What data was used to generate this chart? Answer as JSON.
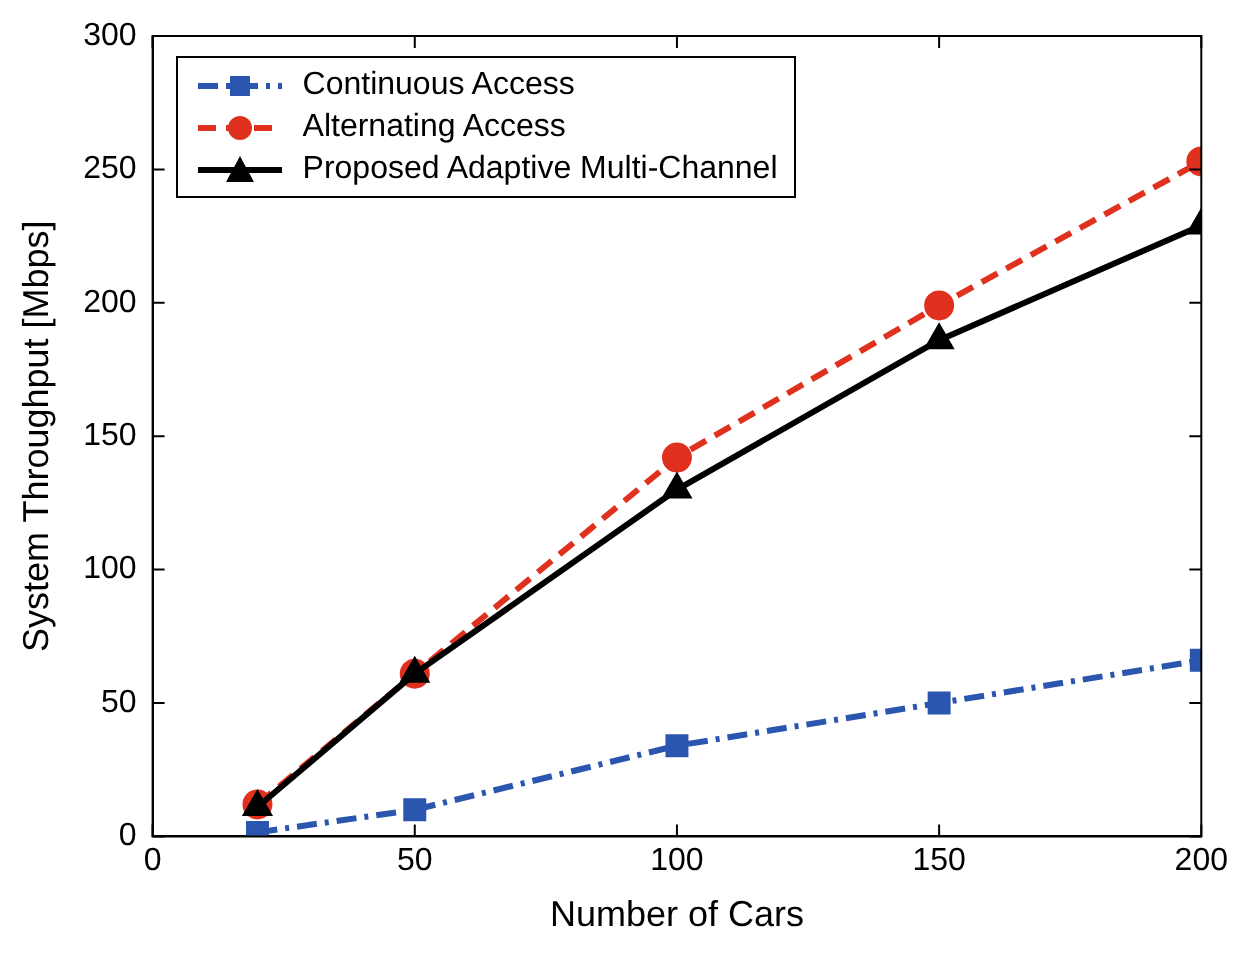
{
  "chart_data": {
    "type": "line",
    "xlabel": "Number of Cars",
    "ylabel": "System Throughput [Mbps]",
    "x": [
      20,
      50,
      100,
      150,
      200
    ],
    "series": [
      {
        "name": "Continuous Access",
        "color": "#2b56b0",
        "values": [
          1.5,
          10,
          34,
          50,
          66
        ],
        "marker": "square",
        "line_style": "dashdot"
      },
      {
        "name": "Alternating Access",
        "color": "#e0301e",
        "values": [
          12,
          61,
          142,
          199,
          253
        ],
        "marker": "circle",
        "line_style": "dashed"
      },
      {
        "name": "Proposed Adaptive Multi-Channel",
        "color": "#000000",
        "values": [
          11,
          61,
          130,
          186,
          229
        ],
        "marker": "triangle",
        "line_style": "solid"
      }
    ],
    "xlim": [
      0,
      200
    ],
    "xticks": [
      0,
      50,
      100,
      150,
      200
    ],
    "ylim": [
      0,
      300
    ],
    "yticks": [
      0,
      50,
      100,
      150,
      200,
      250,
      300
    ],
    "grid": false,
    "legend": "top left"
  }
}
